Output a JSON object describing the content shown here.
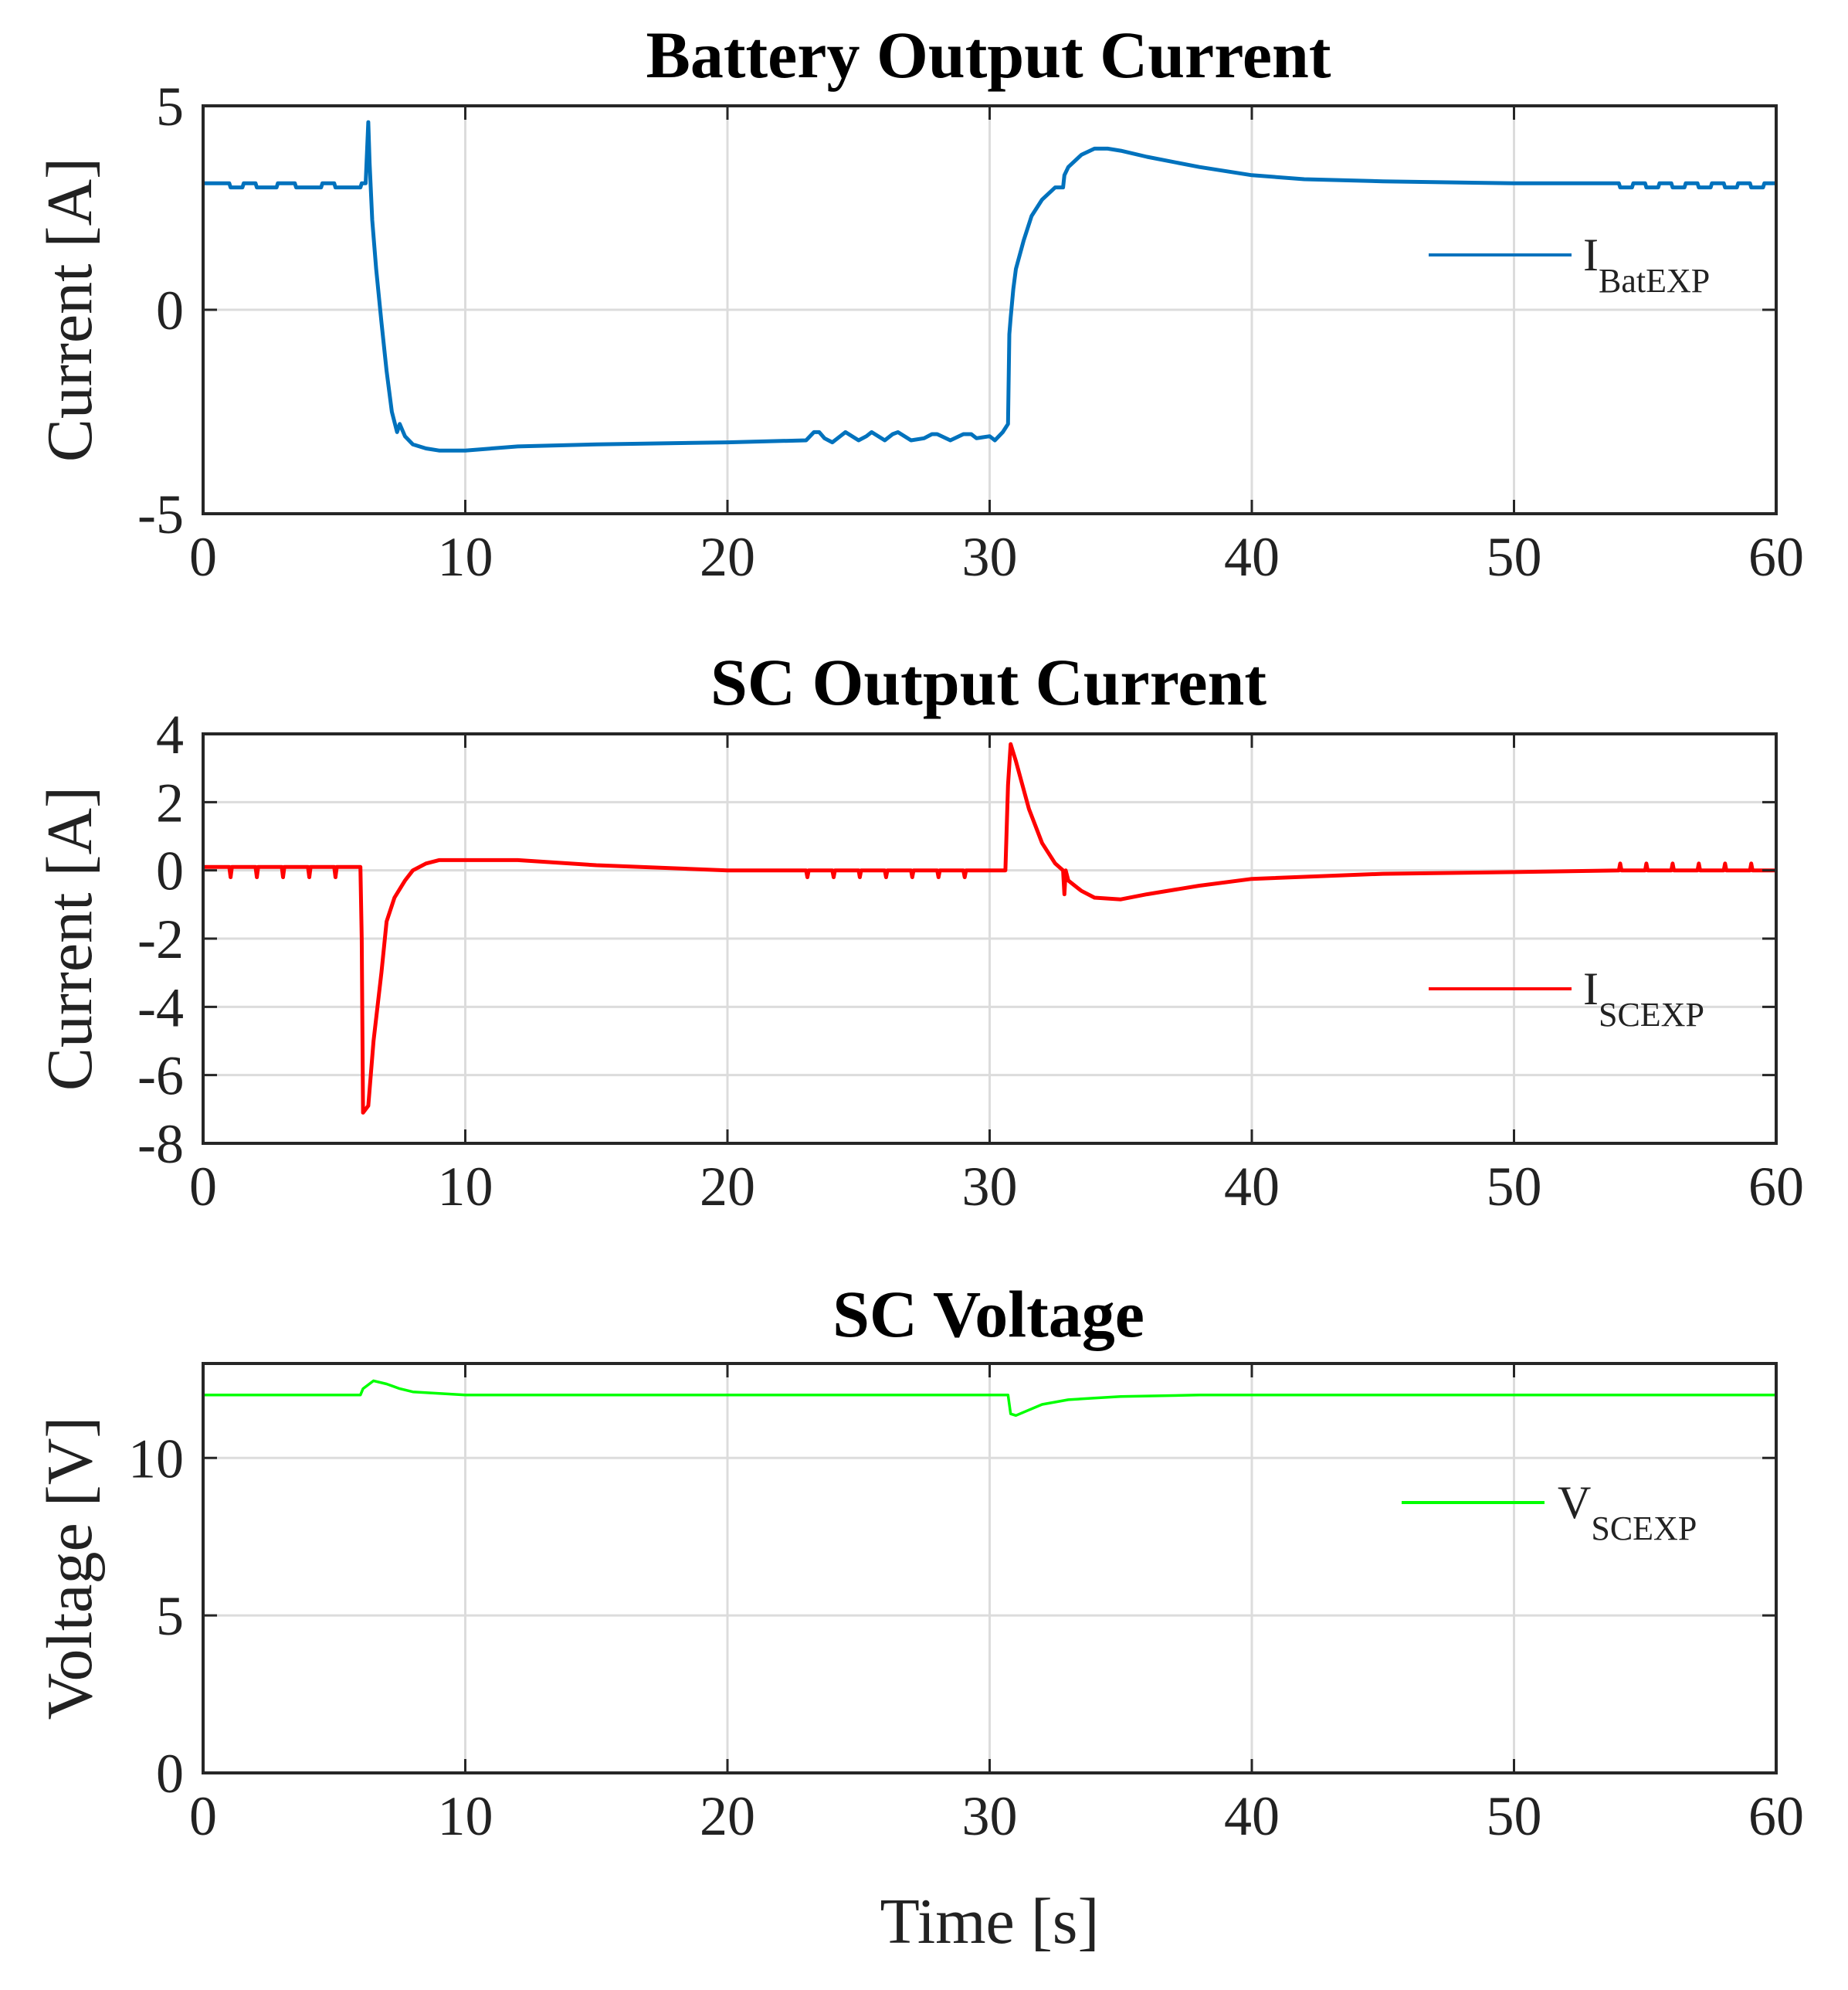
{
  "chart_data": [
    {
      "type": "line",
      "title": "Battery Output Current",
      "xlabel": "",
      "ylabel": "Current [A]",
      "xlim": [
        0,
        60
      ],
      "ylim": [
        -5,
        5
      ],
      "xticks": [
        0,
        10,
        20,
        30,
        40,
        50,
        60
      ],
      "yticks": [
        -5,
        0,
        5
      ],
      "grid": true,
      "legend": {
        "placement": "right-middle",
        "entries": [
          {
            "main": "I",
            "sub": "BatEXP"
          }
        ]
      },
      "series": [
        {
          "name": "I_BatEXP",
          "color": "#0072BD",
          "x": [
            0,
            1,
            1.05,
            1.5,
            1.55,
            2,
            2.05,
            2.8,
            2.85,
            3.5,
            3.55,
            4.5,
            4.55,
            5,
            5.05,
            6,
            6.05,
            6.2,
            6.3,
            6.35,
            6.45,
            6.6,
            6.8,
            7,
            7.2,
            7.4,
            7.5,
            7.7,
            8,
            8.5,
            9,
            10,
            12,
            15,
            20,
            23,
            23.3,
            23.5,
            23.7,
            24,
            24.3,
            24.5,
            25,
            25.3,
            25.5,
            26,
            26.3,
            26.5,
            27,
            27.5,
            27.8,
            28,
            28.5,
            29,
            29.3,
            29.5,
            30,
            30.2,
            30.5,
            30.6,
            30.7,
            30.75,
            30.8,
            30.9,
            31,
            31.3,
            31.6,
            32,
            32.5,
            32.8,
            32.85,
            33,
            33.5,
            34,
            34.5,
            35,
            36,
            38,
            40,
            42,
            45,
            50,
            54,
            54.05,
            54.5,
            54.55,
            55,
            55.05,
            55.5,
            55.55,
            56,
            56.05,
            56.5,
            56.55,
            57,
            57.05,
            57.5,
            57.55,
            58,
            58.05,
            58.5,
            58.55,
            59,
            59.05,
            59.5,
            59.55,
            60
          ],
          "y": [
            3.1,
            3.1,
            3.0,
            3.0,
            3.1,
            3.1,
            3.0,
            3.0,
            3.1,
            3.1,
            3.0,
            3.0,
            3.1,
            3.1,
            3.0,
            3.0,
            3.1,
            3.1,
            4.6,
            3.6,
            2.2,
            1.0,
            -0.3,
            -1.5,
            -2.5,
            -3.0,
            -2.8,
            -3.1,
            -3.3,
            -3.4,
            -3.45,
            -3.45,
            -3.35,
            -3.3,
            -3.25,
            -3.2,
            -3.0,
            -3.0,
            -3.15,
            -3.25,
            -3.1,
            -3.0,
            -3.2,
            -3.1,
            -3.0,
            -3.2,
            -3.05,
            -3.0,
            -3.2,
            -3.15,
            -3.05,
            -3.05,
            -3.2,
            -3.05,
            -3.05,
            -3.15,
            -3.1,
            -3.2,
            -3.0,
            -2.9,
            -2.8,
            -0.6,
            -0.2,
            0.5,
            1.0,
            1.7,
            2.3,
            2.7,
            3.0,
            3.0,
            3.3,
            3.5,
            3.8,
            3.95,
            3.95,
            3.9,
            3.75,
            3.5,
            3.3,
            3.2,
            3.15,
            3.1,
            3.1,
            3.0,
            3.0,
            3.1,
            3.1,
            3.0,
            3.0,
            3.1,
            3.1,
            3.0,
            3.0,
            3.1,
            3.1,
            3.0,
            3.0,
            3.1,
            3.1,
            3.0,
            3.0,
            3.1,
            3.1,
            3.0,
            3.0,
            3.1,
            3.1
          ]
        }
      ]
    },
    {
      "type": "line",
      "title": "SC Output Current",
      "xlabel": "",
      "ylabel": "Current [A]",
      "xlim": [
        0,
        60
      ],
      "ylim": [
        -8,
        4
      ],
      "xticks": [
        0,
        10,
        20,
        30,
        40,
        50,
        60
      ],
      "yticks": [
        -8,
        -6,
        -4,
        -2,
        0,
        2,
        4
      ],
      "grid": true,
      "legend": {
        "placement": "right-lower",
        "entries": [
          {
            "main": "I",
            "sub": "SCEXP"
          }
        ]
      },
      "series": [
        {
          "name": "I_SCEXP",
          "color": "#FF0000",
          "x": [
            0,
            1,
            1.05,
            1.1,
            2,
            2.05,
            2.1,
            3,
            3.05,
            3.1,
            4,
            4.05,
            4.1,
            5,
            5.05,
            5.1,
            6,
            6.05,
            6.1,
            6.3,
            6.5,
            6.8,
            7,
            7.3,
            7.7,
            8,
            8.5,
            9,
            10,
            11,
            12,
            15,
            20,
            23,
            23.05,
            23.1,
            24,
            24.05,
            24.1,
            25,
            25.05,
            25.1,
            26,
            26.05,
            26.1,
            27,
            27.05,
            27.1,
            28,
            28.05,
            28.1,
            29,
            29.05,
            29.1,
            30,
            30.6,
            30.7,
            30.8,
            31,
            31.5,
            32,
            32.5,
            32.8,
            32.85,
            32.9,
            33,
            33.5,
            34,
            35,
            36,
            38,
            40,
            45,
            50,
            54,
            54.05,
            54.1,
            55,
            55.05,
            55.1,
            56,
            56.05,
            56.1,
            57,
            57.05,
            57.1,
            58,
            58.05,
            58.1,
            59,
            59.05,
            59.1,
            60
          ],
          "y": [
            0.1,
            0.1,
            -0.2,
            0.1,
            0.1,
            -0.2,
            0.1,
            0.1,
            -0.2,
            0.1,
            0.1,
            -0.2,
            0.1,
            0.1,
            -0.2,
            0.1,
            0.1,
            -2.0,
            -7.1,
            -6.9,
            -5.0,
            -3.0,
            -1.5,
            -0.8,
            -0.3,
            0.0,
            0.2,
            0.3,
            0.3,
            0.3,
            0.3,
            0.15,
            0.0,
            0.0,
            -0.2,
            0.0,
            0.0,
            -0.2,
            0.0,
            0.0,
            -0.2,
            0.0,
            0.0,
            -0.2,
            0.0,
            0.0,
            -0.2,
            0.0,
            0.0,
            -0.2,
            0.0,
            0.0,
            -0.2,
            0.0,
            0.0,
            0.0,
            2.5,
            3.7,
            3.2,
            1.8,
            0.8,
            0.2,
            0.0,
            -0.7,
            0.0,
            -0.3,
            -0.6,
            -0.8,
            -0.85,
            -0.7,
            -0.45,
            -0.25,
            -0.1,
            -0.05,
            0.0,
            0.2,
            0.0,
            0.0,
            0.2,
            0.0,
            0.0,
            0.2,
            0.0,
            0.0,
            0.2,
            0.0,
            0.0,
            0.2,
            0.0,
            0.0,
            0.2,
            0.0,
            0.0
          ]
        }
      ]
    },
    {
      "type": "line",
      "title": "SC Voltage",
      "xlabel": "Time [s]",
      "ylabel": "Voltage [V]",
      "xlim": [
        0,
        60
      ],
      "ylim": [
        0,
        13
      ],
      "xticks": [
        0,
        10,
        20,
        30,
        40,
        50,
        60
      ],
      "yticks": [
        0,
        5,
        10
      ],
      "grid": true,
      "legend": {
        "placement": "right-upper",
        "entries": [
          {
            "main": "V",
            "sub": "SCEXP"
          }
        ]
      },
      "series": [
        {
          "name": "V_SCEXP",
          "color": "#00FF00",
          "x": [
            0,
            6,
            6.1,
            6.5,
            7,
            7.5,
            8,
            9,
            10,
            12,
            15,
            20,
            25,
            30,
            30.7,
            30.8,
            31,
            32,
            33,
            34,
            35,
            38,
            40,
            45,
            50,
            60
          ],
          "y": [
            12.0,
            12.0,
            12.2,
            12.45,
            12.35,
            12.2,
            12.1,
            12.05,
            12.0,
            12.0,
            12.0,
            12.0,
            12.0,
            12.0,
            12.0,
            11.4,
            11.35,
            11.7,
            11.85,
            11.9,
            11.95,
            12.0,
            12.0,
            12.0,
            12.0,
            12.0
          ]
        }
      ]
    }
  ]
}
